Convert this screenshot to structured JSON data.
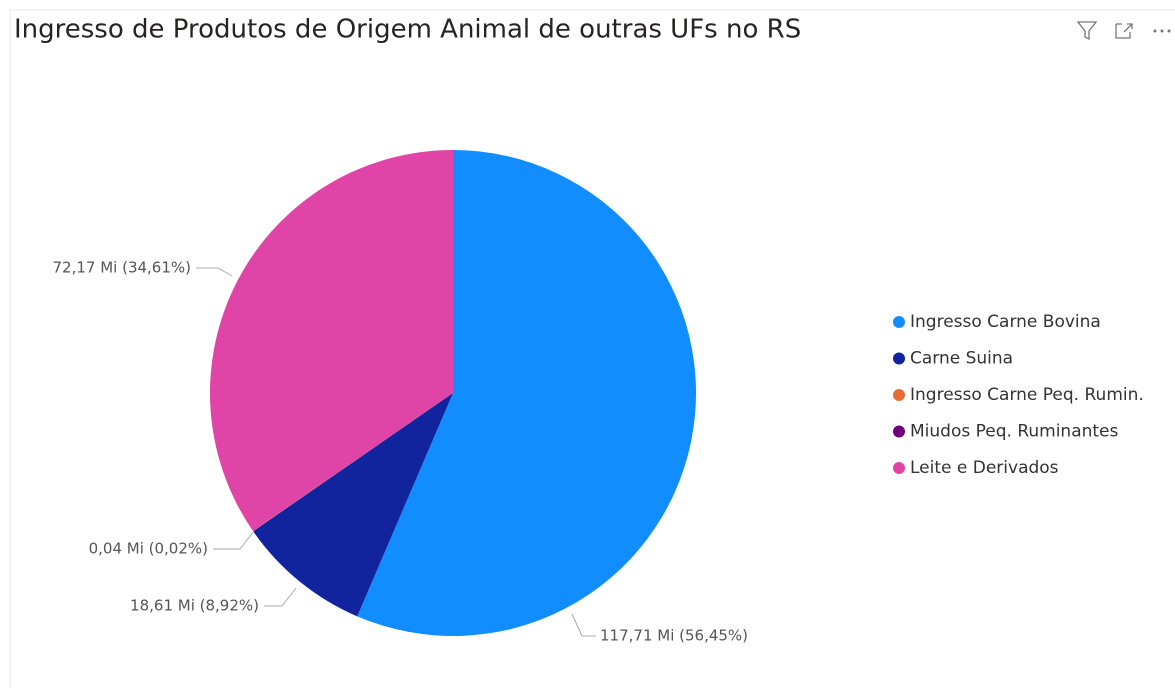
{
  "chart_data": {
    "type": "pie",
    "title": "Ingresso de Produtos de Origem Animal de outras UFs no RS",
    "categories": [
      "Ingresso Carne Bovina",
      "Carne Suina",
      "Ingresso Carne Peq. Rumin.",
      "Miudos Peq. Ruminantes",
      "Leite e Derivados"
    ],
    "values": [
      117.71,
      18.61,
      0.04,
      0,
      72.17
    ],
    "value_labels": [
      "117,71 Mi (56,45%)",
      "18,61 Mi (8,92%)",
      "0,04 Mi (0,02%)",
      null,
      "72,17 Mi (34,61%)"
    ],
    "colors": [
      "#118dff",
      "#12239e",
      "#e66c37",
      "#6b007b",
      "#e044a7"
    ],
    "legend": "right"
  }
}
